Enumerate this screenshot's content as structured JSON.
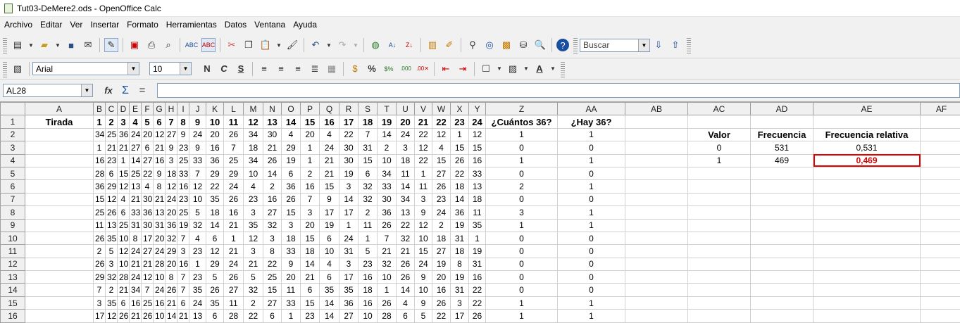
{
  "window": {
    "title": "Tut03-DeMere2.ods - OpenOffice Calc"
  },
  "menu": [
    "Archivo",
    "Editar",
    "Ver",
    "Insertar",
    "Formato",
    "Herramientas",
    "Datos",
    "Ventana",
    "Ayuda"
  ],
  "toolbar": {
    "search_placeholder": "Buscar",
    "font_name": "Arial",
    "font_size": "10"
  },
  "formula": {
    "cell_ref": "AL28",
    "content": ""
  },
  "columns": [
    "",
    "A",
    "B",
    "C",
    "D",
    "E",
    "F",
    "G",
    "H",
    "I",
    "J",
    "K",
    "L",
    "M",
    "N",
    "O",
    "P",
    "Q",
    "R",
    "S",
    "T",
    "U",
    "V",
    "W",
    "X",
    "Y",
    "Z",
    "AA",
    "AB",
    "AC",
    "AD",
    "AE",
    "AF"
  ],
  "rows": [
    {
      "n": "1",
      "a": "Tirada",
      "nums": [
        "1",
        "2",
        "3",
        "4",
        "5",
        "6",
        "7",
        "8",
        "9",
        "10",
        "11",
        "12",
        "13",
        "14",
        "15",
        "16",
        "17",
        "18",
        "19",
        "20",
        "21",
        "22",
        "23",
        "24"
      ],
      "z": "¿Cuántos 36?",
      "aa": "¿Hay 36?",
      "ab": "",
      "ac": "",
      "ad": "",
      "ae": ""
    },
    {
      "n": "2",
      "a": "",
      "nums": [
        "34",
        "25",
        "36",
        "24",
        "20",
        "12",
        "27",
        "9",
        "24",
        "20",
        "26",
        "34",
        "30",
        "4",
        "20",
        "4",
        "22",
        "7",
        "14",
        "24",
        "22",
        "12",
        "1",
        "12"
      ],
      "z": "1",
      "aa": "1",
      "ab": "",
      "ac": "Valor",
      "ad": "Frecuencia",
      "ae": "Frecuencia relativa"
    },
    {
      "n": "3",
      "a": "",
      "nums": [
        "1",
        "21",
        "21",
        "27",
        "6",
        "21",
        "9",
        "23",
        "9",
        "16",
        "7",
        "18",
        "21",
        "29",
        "1",
        "24",
        "30",
        "31",
        "2",
        "3",
        "12",
        "4",
        "15",
        "15"
      ],
      "z": "0",
      "aa": "0",
      "ab": "",
      "ac": "0",
      "ad": "531",
      "ae": "0,531"
    },
    {
      "n": "4",
      "a": "",
      "nums": [
        "16",
        "23",
        "1",
        "14",
        "27",
        "16",
        "3",
        "25",
        "33",
        "36",
        "25",
        "34",
        "26",
        "19",
        "1",
        "21",
        "30",
        "15",
        "10",
        "18",
        "22",
        "15",
        "26",
        "16"
      ],
      "z": "1",
      "aa": "1",
      "ab": "",
      "ac": "1",
      "ad": "469",
      "ae": "0,469"
    },
    {
      "n": "5",
      "a": "",
      "nums": [
        "28",
        "6",
        "15",
        "25",
        "22",
        "9",
        "18",
        "33",
        "7",
        "29",
        "29",
        "10",
        "14",
        "6",
        "2",
        "21",
        "19",
        "6",
        "34",
        "11",
        "1",
        "27",
        "22",
        "33"
      ],
      "z": "0",
      "aa": "0",
      "ab": "",
      "ac": "",
      "ad": "",
      "ae": ""
    },
    {
      "n": "6",
      "a": "",
      "nums": [
        "36",
        "29",
        "12",
        "13",
        "4",
        "8",
        "12",
        "16",
        "12",
        "22",
        "24",
        "4",
        "2",
        "36",
        "16",
        "15",
        "3",
        "32",
        "33",
        "14",
        "11",
        "26",
        "18",
        "13"
      ],
      "z": "2",
      "aa": "1",
      "ab": "",
      "ac": "",
      "ad": "",
      "ae": ""
    },
    {
      "n": "7",
      "a": "",
      "nums": [
        "15",
        "12",
        "4",
        "21",
        "30",
        "21",
        "24",
        "23",
        "10",
        "35",
        "26",
        "23",
        "16",
        "26",
        "7",
        "9",
        "14",
        "32",
        "30",
        "34",
        "3",
        "23",
        "14",
        "18"
      ],
      "z": "0",
      "aa": "0",
      "ab": "",
      "ac": "",
      "ad": "",
      "ae": ""
    },
    {
      "n": "8",
      "a": "",
      "nums": [
        "25",
        "26",
        "6",
        "33",
        "36",
        "13",
        "20",
        "25",
        "5",
        "18",
        "16",
        "3",
        "27",
        "15",
        "3",
        "17",
        "17",
        "2",
        "36",
        "13",
        "9",
        "24",
        "36",
        "11"
      ],
      "z": "3",
      "aa": "1",
      "ab": "",
      "ac": "",
      "ad": "",
      "ae": ""
    },
    {
      "n": "9",
      "a": "",
      "nums": [
        "11",
        "13",
        "25",
        "31",
        "30",
        "31",
        "36",
        "19",
        "32",
        "14",
        "21",
        "35",
        "32",
        "3",
        "20",
        "19",
        "1",
        "11",
        "26",
        "22",
        "12",
        "2",
        "19",
        "35"
      ],
      "z": "1",
      "aa": "1",
      "ab": "",
      "ac": "",
      "ad": "",
      "ae": ""
    },
    {
      "n": "10",
      "a": "",
      "nums": [
        "26",
        "35",
        "10",
        "8",
        "17",
        "20",
        "32",
        "7",
        "4",
        "6",
        "1",
        "12",
        "3",
        "18",
        "15",
        "6",
        "24",
        "1",
        "7",
        "32",
        "10",
        "18",
        "31",
        "1"
      ],
      "z": "0",
      "aa": "0",
      "ab": "",
      "ac": "",
      "ad": "",
      "ae": ""
    },
    {
      "n": "11",
      "a": "",
      "nums": [
        "2",
        "5",
        "12",
        "24",
        "27",
        "24",
        "29",
        "3",
        "23",
        "12",
        "21",
        "3",
        "8",
        "33",
        "18",
        "10",
        "31",
        "5",
        "21",
        "21",
        "15",
        "27",
        "18",
        "19"
      ],
      "z": "0",
      "aa": "0",
      "ab": "",
      "ac": "",
      "ad": "",
      "ae": ""
    },
    {
      "n": "12",
      "a": "",
      "nums": [
        "26",
        "3",
        "10",
        "21",
        "21",
        "28",
        "20",
        "16",
        "1",
        "29",
        "24",
        "21",
        "22",
        "9",
        "14",
        "4",
        "3",
        "23",
        "32",
        "26",
        "24",
        "19",
        "8",
        "31"
      ],
      "z": "0",
      "aa": "0",
      "ab": "",
      "ac": "",
      "ad": "",
      "ae": ""
    },
    {
      "n": "13",
      "a": "",
      "nums": [
        "29",
        "32",
        "28",
        "24",
        "12",
        "10",
        "8",
        "7",
        "23",
        "5",
        "26",
        "5",
        "25",
        "20",
        "21",
        "6",
        "17",
        "16",
        "10",
        "26",
        "9",
        "20",
        "19",
        "16"
      ],
      "z": "0",
      "aa": "0",
      "ab": "",
      "ac": "",
      "ad": "",
      "ae": ""
    },
    {
      "n": "14",
      "a": "",
      "nums": [
        "7",
        "2",
        "21",
        "34",
        "7",
        "24",
        "26",
        "7",
        "35",
        "26",
        "27",
        "32",
        "15",
        "11",
        "6",
        "35",
        "35",
        "18",
        "1",
        "14",
        "10",
        "16",
        "31",
        "22"
      ],
      "z": "0",
      "aa": "0",
      "ab": "",
      "ac": "",
      "ad": "",
      "ae": ""
    },
    {
      "n": "15",
      "a": "",
      "nums": [
        "3",
        "35",
        "6",
        "16",
        "25",
        "16",
        "21",
        "6",
        "24",
        "35",
        "11",
        "2",
        "27",
        "33",
        "15",
        "14",
        "36",
        "16",
        "26",
        "4",
        "9",
        "26",
        "3",
        "22"
      ],
      "z": "1",
      "aa": "1",
      "ab": "",
      "ac": "",
      "ad": "",
      "ae": ""
    },
    {
      "n": "16",
      "a": "",
      "nums": [
        "17",
        "12",
        "26",
        "21",
        "26",
        "10",
        "14",
        "21",
        "13",
        "6",
        "28",
        "22",
        "6",
        "1",
        "23",
        "14",
        "27",
        "10",
        "28",
        "6",
        "5",
        "22",
        "17",
        "26"
      ],
      "z": "1",
      "aa": "1",
      "ab": "",
      "ac": "",
      "ad": "",
      "ae": ""
    }
  ]
}
